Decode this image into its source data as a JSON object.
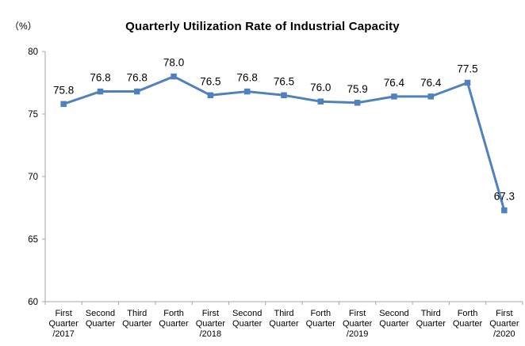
{
  "chart_data": {
    "type": "line",
    "title": "Quarterly Utilization Rate of Industrial Capacity",
    "unit": "（%）",
    "categories": [
      "First Quarter /2017",
      "Second Quarter",
      "Third Quarter",
      "Forth Quarter",
      "First Quarter /2018",
      "Second Quarter",
      "Third Quarter",
      "Forth Quarter",
      "First Quarter /2019",
      "Second Quarter",
      "Third Quarter",
      "Forth Quarter",
      "First Quarter /2020"
    ],
    "values": [
      75.8,
      76.8,
      76.8,
      78.0,
      76.5,
      76.8,
      76.5,
      76.0,
      75.9,
      76.4,
      76.4,
      77.5,
      67.3
    ],
    "ylim": [
      60,
      80
    ],
    "yticks": [
      60,
      65,
      70,
      75,
      80
    ],
    "grid": false,
    "legend": "none",
    "marker": "square",
    "line_color": "#4F81BD",
    "axis_color": "#A6A6A6",
    "text_color": "#000000"
  }
}
